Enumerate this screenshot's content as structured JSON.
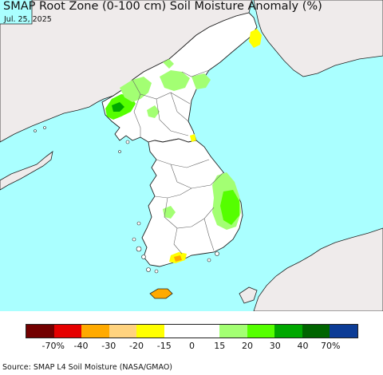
{
  "title": "SMAP Root Zone (0-100 cm) Soil Moisture Anomaly (%)",
  "date": "Jul. 25, 2025",
  "source": "Source: SMAP L4 Soil Moisture (NASA/GMAO)",
  "colors": {
    "sea": "#aaffff",
    "land": "#ffffff",
    "foreign_land": "#efebeb",
    "border": "#222222",
    "province": "#666666"
  },
  "legend": {
    "colors": [
      "#730000",
      "#e60000",
      "#ffaa00",
      "#ffd37f",
      "#ffff00",
      "#ffffff",
      "#ffffff",
      "#a3ff73",
      "#55ff00",
      "#00a800",
      "#006400",
      "#0c3c96"
    ],
    "labels": [
      "-70%",
      "-40",
      "-30",
      "-20",
      "-15",
      "0",
      "15",
      "20",
      "30",
      "40",
      "70%"
    ]
  }
}
